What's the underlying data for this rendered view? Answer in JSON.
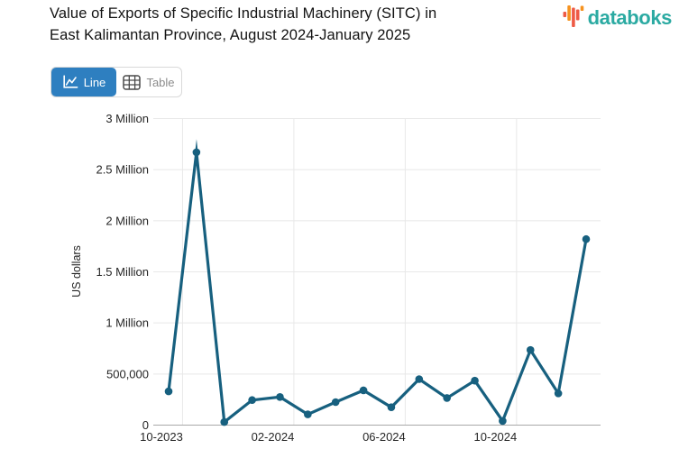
{
  "header": {
    "title_line1": "Value of Exports of Specific Industrial Machinery (SITC) in",
    "title_line2": "East Kalimantan Province, August 2024-January 2025",
    "logo_text": "databoks"
  },
  "toolbar": {
    "line_label": "Line",
    "table_label": "Table"
  },
  "icons": {
    "line_button": "line-chart-icon",
    "table_button": "table-grid-icon",
    "logo": "databoks-bars-icon"
  },
  "colors": {
    "line": "#17607f",
    "accent-blue": "#2e7fc0",
    "logo-teal": "#2baaa2",
    "logo-orange": "#f6921e",
    "logo-coral": "#ee5a45",
    "grid": "#e8e8e8",
    "axis": "#a8a8a8",
    "tick-text": "#262626"
  },
  "chart_data": {
    "type": "line",
    "title": "Value of Exports of Specific Industrial Machinery (SITC) in East Kalimantan Province, August 2024-January 2025",
    "xlabel": "",
    "ylabel": "US dollars",
    "ylim": [
      0,
      3000000
    ],
    "grid": true,
    "legend": false,
    "x": [
      "10-2023",
      "11-2023",
      "12-2023",
      "01-2024",
      "02-2024",
      "03-2024",
      "04-2024",
      "05-2024",
      "06-2024",
      "07-2024",
      "08-2024",
      "09-2024",
      "10-2024",
      "11-2024",
      "12-2024",
      "01-2025"
    ],
    "values": [
      330000,
      2670000,
      30000,
      245000,
      275000,
      105000,
      225000,
      340000,
      175000,
      450000,
      265000,
      435000,
      40000,
      735000,
      310000,
      1820000
    ],
    "ytick_values": [
      0,
      500000,
      1000000,
      1500000,
      2000000,
      2500000,
      3000000
    ],
    "ytick_labels": [
      "0",
      "500,000",
      "1 Million",
      "1.5 Million",
      "2 Million",
      "2.5 Million",
      "3 Million"
    ],
    "xtick_indices": [
      0,
      4,
      8,
      12
    ],
    "xtick_labels": [
      "10-2023",
      "02-2024",
      "06-2024",
      "10-2024"
    ]
  }
}
